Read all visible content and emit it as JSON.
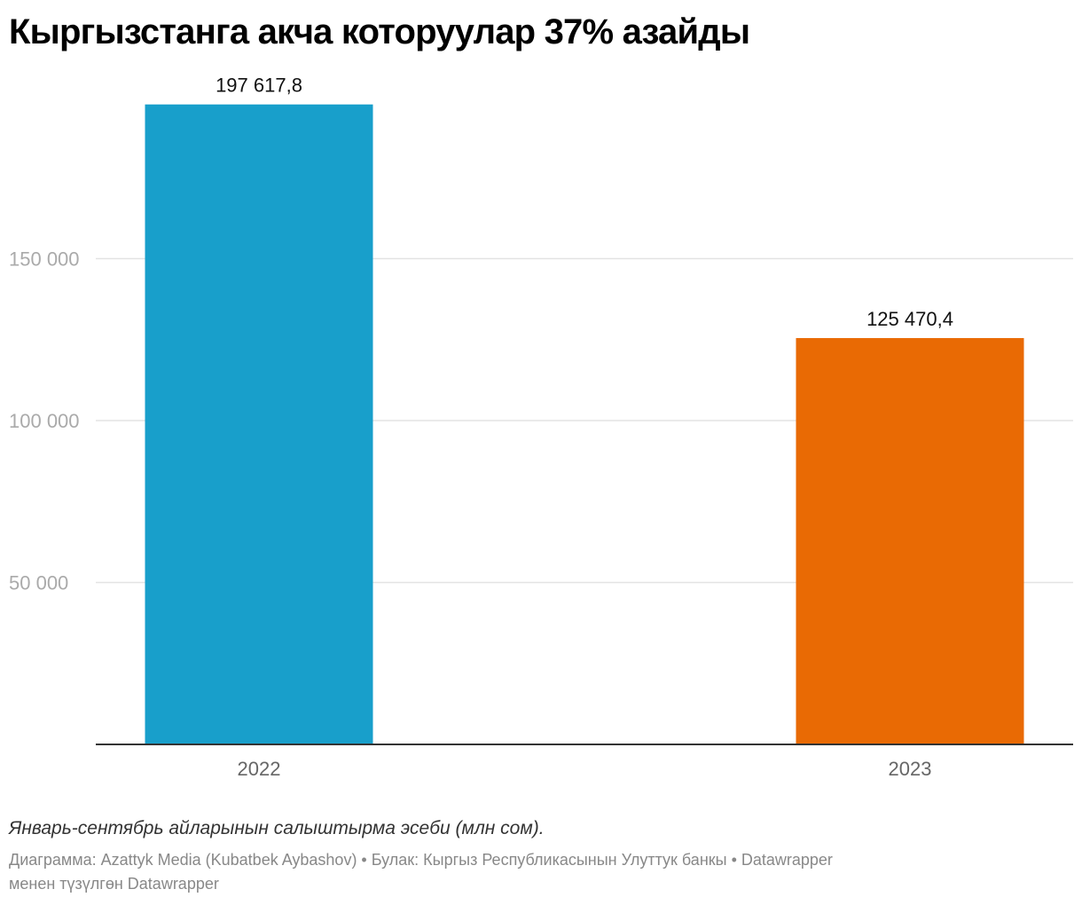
{
  "title": "Кыргызстанга акча которуулар 37% азайды",
  "notes": "Январь-сентябрь айларынын салыштырма эсеби (млн сом).",
  "footer": {
    "line1": "Диаграмма: Azattyk Media (Kubatbek Aybashov) • Булак: Кыргыз Республикасынын Улуттук банкы • Datawrapper",
    "line2": "менен түзүлгөн Datawrapper"
  },
  "colors": {
    "bar_2022": "#189fcb",
    "bar_2023": "#e96a04",
    "grid": "#e3e3e3",
    "axis_line": "#333333",
    "tick_label": "#aaaaaa",
    "category_label": "#666666"
  },
  "chart_data": {
    "type": "bar",
    "title": "Кыргызстанга акча которуулар 37% азайды",
    "categories": [
      "2022",
      "2023"
    ],
    "values": [
      197617.8,
      125470.4
    ],
    "value_labels": [
      "197 617,8",
      "125 470,4"
    ],
    "bar_colors": [
      "#189fcb",
      "#e96a04"
    ],
    "yticks": [
      50000,
      100000,
      150000
    ],
    "ytick_labels": [
      "50 000",
      "100 000",
      "150 000"
    ],
    "ylim": [
      0,
      200000
    ],
    "grid": true,
    "legend": "none"
  }
}
